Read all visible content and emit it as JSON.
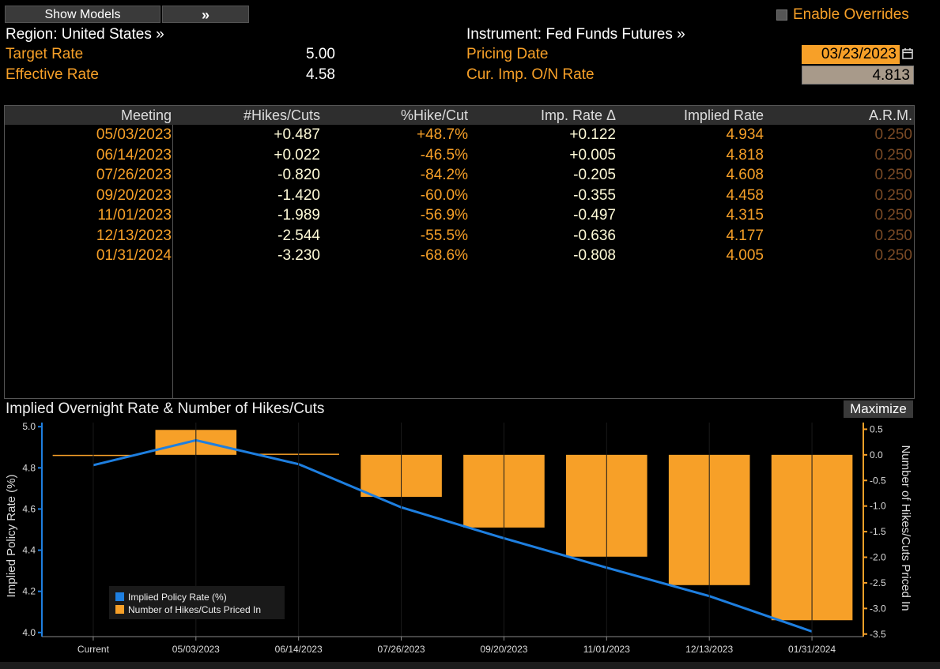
{
  "toolbar": {
    "show_models_label": "Show Models",
    "expand_label": "»",
    "enable_overrides_label": "Enable Overrides"
  },
  "header": {
    "region_label": "Region: United States »",
    "instrument_label": "Instrument: Fed Funds Futures »",
    "target_rate_label": "Target Rate",
    "target_rate_value": "5.00",
    "effective_rate_label": "Effective Rate",
    "effective_rate_value": "4.58",
    "pricing_date_label": "Pricing Date",
    "pricing_date_value": "03/23/2023",
    "cur_imp_label": "Cur. Imp. O/N Rate",
    "cur_imp_value": "4.813"
  },
  "table": {
    "columns": [
      "Meeting",
      "#Hikes/Cuts",
      "%Hike/Cut",
      "Imp. Rate Δ",
      "Implied Rate",
      "A.R.M."
    ],
    "rows": [
      {
        "meeting": "05/03/2023",
        "hikes": "+0.487",
        "pct": "+48.7%",
        "delta": "+0.122",
        "implied": "4.934",
        "arm": "0.250"
      },
      {
        "meeting": "06/14/2023",
        "hikes": "+0.022",
        "pct": "-46.5%",
        "delta": "+0.005",
        "implied": "4.818",
        "arm": "0.250"
      },
      {
        "meeting": "07/26/2023",
        "hikes": "-0.820",
        "pct": "-84.2%",
        "delta": "-0.205",
        "implied": "4.608",
        "arm": "0.250"
      },
      {
        "meeting": "09/20/2023",
        "hikes": "-1.420",
        "pct": "-60.0%",
        "delta": "-0.355",
        "implied": "4.458",
        "arm": "0.250"
      },
      {
        "meeting": "11/01/2023",
        "hikes": "-1.989",
        "pct": "-56.9%",
        "delta": "-0.497",
        "implied": "4.315",
        "arm": "0.250"
      },
      {
        "meeting": "12/13/2023",
        "hikes": "-2.544",
        "pct": "-55.5%",
        "delta": "-0.636",
        "implied": "4.177",
        "arm": "0.250"
      },
      {
        "meeting": "01/31/2024",
        "hikes": "-3.230",
        "pct": "-68.6%",
        "delta": "-0.808",
        "implied": "4.005",
        "arm": "0.250"
      }
    ]
  },
  "chart_panel": {
    "title": "Implied Overnight Rate & Number of Hikes/Cuts",
    "maximize_label": "Maximize"
  },
  "chart_data": {
    "type": "bar",
    "categories": [
      "Current",
      "05/03/2023",
      "06/14/2023",
      "07/26/2023",
      "09/20/2023",
      "11/01/2023",
      "12/13/2023",
      "01/31/2024"
    ],
    "series": [
      {
        "name": "Implied Policy Rate (%)",
        "type": "line",
        "axis": "left",
        "color": "#1e7fe0",
        "values": [
          4.813,
          4.934,
          4.818,
          4.608,
          4.458,
          4.315,
          4.177,
          4.005
        ]
      },
      {
        "name": "Number of Hikes/Cuts Priced In",
        "type": "bar",
        "axis": "right",
        "color": "#f7a028",
        "values": [
          0,
          0.487,
          0.022,
          -0.82,
          -1.42,
          -1.989,
          -2.544,
          -3.23
        ]
      }
    ],
    "ylabel_left": "Implied Policy Rate (%)",
    "ylabel_right": "Number of Hikes/Cuts Priced In",
    "ylim_left": [
      3.98,
      5.02
    ],
    "yticks_left": [
      "4.0",
      "4.2",
      "4.4",
      "4.6",
      "4.8",
      "5.0"
    ],
    "ylim_right": [
      -3.55,
      0.63
    ],
    "yticks_right": [
      "0.5",
      "0.0",
      "-0.5",
      "-1.0",
      "-1.5",
      "-2.0",
      "-2.5",
      "-3.0",
      "-3.5"
    ],
    "legend_position": "bottom-left",
    "grid": false
  }
}
